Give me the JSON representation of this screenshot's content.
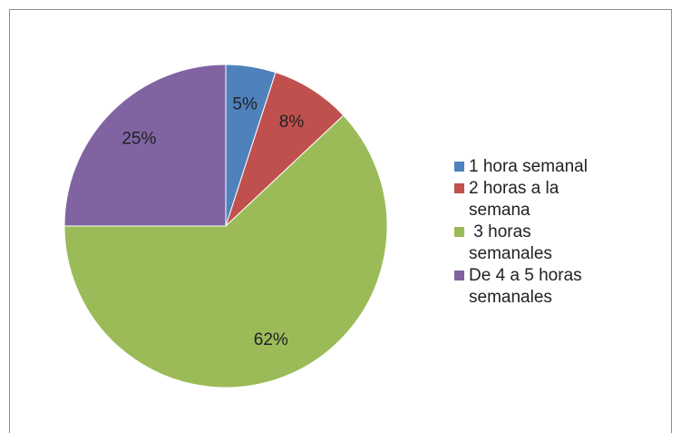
{
  "chart_data": {
    "type": "pie",
    "categories": [
      "1 hora semanal",
      "2 horas a la semana",
      " 3 horas semanales",
      "De 4 a 5 horas semanales"
    ],
    "values": [
      5,
      8,
      62,
      25
    ],
    "value_labels": [
      "5%",
      "8%",
      "62%",
      "25%"
    ],
    "colors": [
      "#4f81bd",
      "#c0504d",
      "#9bbb59",
      "#8064a2"
    ],
    "legend": "right"
  }
}
